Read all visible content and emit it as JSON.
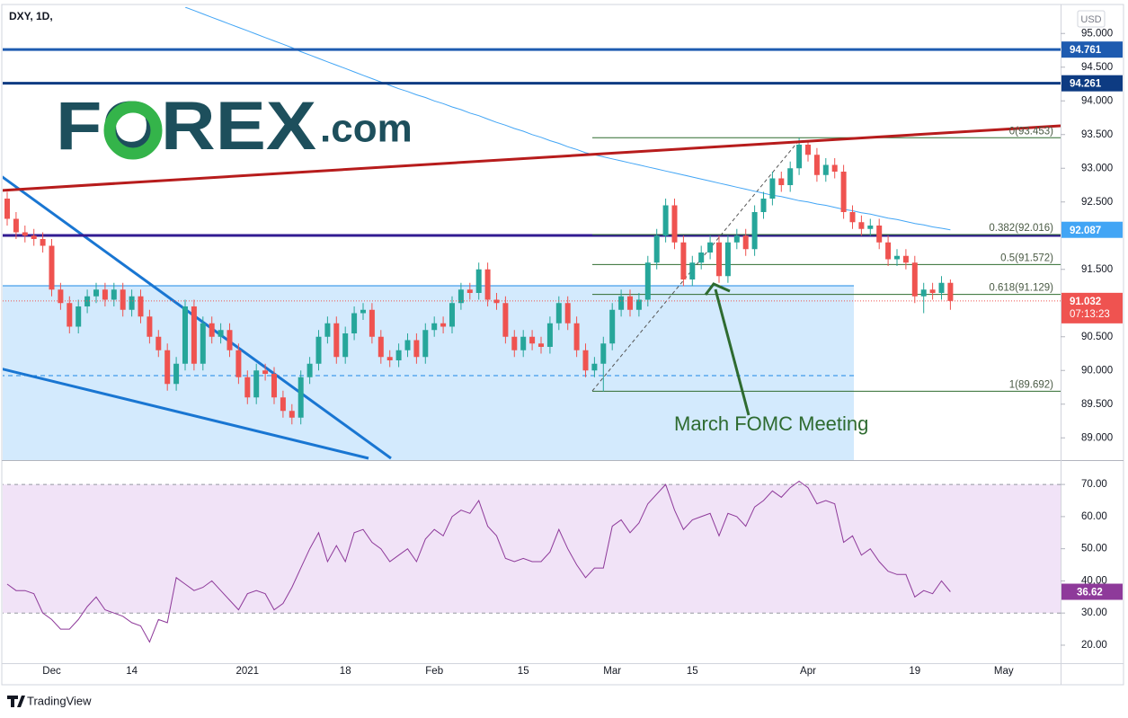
{
  "header": {
    "symbol": "DXY, 1D,",
    "currency": "USD"
  },
  "logo": {
    "brand": "FOREX",
    "suffix": ".com"
  },
  "footer": "TradingView",
  "chart_data": [
    {
      "type": "candlestick",
      "categories": [
        null,
        null,
        null,
        null,
        null,
        "Dec",
        null,
        null,
        null,
        null,
        null,
        null,
        null,
        null,
        "14",
        null,
        null,
        null,
        null,
        null,
        null,
        null,
        null,
        null,
        null,
        null,
        null,
        "2021",
        null,
        null,
        null,
        null,
        null,
        null,
        null,
        null,
        null,
        null,
        "18",
        null,
        null,
        null,
        null,
        null,
        null,
        null,
        null,
        null,
        "Feb",
        null,
        null,
        null,
        null,
        null,
        null,
        null,
        null,
        null,
        "15",
        null,
        null,
        null,
        null,
        null,
        null,
        null,
        null,
        null,
        "Mar",
        null,
        null,
        null,
        null,
        null,
        null,
        null,
        null,
        "15",
        null,
        null,
        null,
        null,
        null,
        null,
        null,
        null,
        null,
        null,
        null,
        null,
        "Apr",
        null,
        null,
        null,
        null,
        null,
        null,
        null,
        null,
        null,
        null,
        null,
        "19",
        null,
        null,
        null,
        null,
        null,
        null,
        null,
        null,
        null,
        "May",
        null,
        null,
        null,
        null,
        null,
        null
      ],
      "open": [
        92.55,
        92.25,
        92.05,
        92.0,
        91.95,
        91.85,
        91.2,
        91.0,
        90.65,
        90.95,
        91.1,
        91.2,
        91.05,
        91.2,
        90.9,
        91.1,
        90.8,
        90.5,
        90.3,
        89.8,
        90.1,
        90.95,
        90.1,
        90.7,
        90.5,
        90.6,
        90.3,
        89.9,
        89.6,
        90.0,
        89.95,
        89.6,
        89.4,
        89.3,
        89.9,
        90.1,
        90.5,
        90.7,
        90.2,
        90.55,
        90.85,
        90.9,
        90.5,
        90.2,
        90.15,
        90.3,
        90.45,
        90.2,
        90.6,
        90.7,
        90.65,
        91.0,
        91.2,
        91.15,
        91.5,
        91.05,
        91.0,
        90.5,
        90.3,
        90.5,
        90.4,
        90.35,
        90.7,
        91.0,
        90.7,
        90.3,
        90.0,
        90.1,
        90.4,
        90.9,
        91.1,
        90.9,
        91.05,
        91.6,
        92.0,
        92.45,
        91.9,
        91.35,
        91.6,
        91.75,
        91.9,
        91.4,
        91.9,
        92.0,
        91.8,
        92.35,
        92.55,
        92.85,
        92.75,
        93.0,
        93.35,
        93.2,
        92.9,
        93.05,
        92.95,
        92.35,
        92.2,
        92.1,
        92.15,
        91.9,
        91.65,
        91.7,
        91.6,
        91.1,
        91.2,
        91.15,
        91.3,
        null,
        null,
        null,
        null,
        null,
        null,
        null,
        null,
        null,
        null,
        null,
        null
      ],
      "high": [
        92.65,
        92.35,
        92.15,
        92.1,
        92.05,
        91.95,
        91.3,
        91.1,
        91.05,
        91.2,
        91.3,
        91.3,
        91.3,
        91.3,
        91.2,
        91.2,
        90.9,
        90.6,
        90.4,
        90.2,
        91.05,
        91.05,
        90.8,
        90.8,
        90.7,
        90.7,
        90.4,
        90.0,
        90.1,
        90.1,
        90.05,
        89.7,
        89.5,
        90.0,
        90.2,
        90.6,
        90.8,
        90.8,
        90.65,
        90.95,
        91.0,
        91.0,
        90.6,
        90.3,
        90.4,
        90.55,
        90.55,
        90.7,
        90.8,
        90.8,
        91.1,
        91.3,
        91.3,
        91.6,
        91.6,
        91.15,
        91.1,
        90.6,
        90.6,
        90.6,
        90.5,
        90.8,
        91.1,
        91.1,
        90.8,
        90.4,
        90.2,
        90.5,
        91.0,
        91.2,
        91.2,
        91.15,
        91.7,
        92.1,
        92.55,
        92.55,
        92.0,
        91.7,
        91.85,
        92.0,
        92.0,
        92.0,
        92.1,
        92.1,
        92.45,
        92.65,
        92.95,
        92.95,
        93.1,
        93.45,
        93.4,
        93.3,
        93.15,
        93.15,
        93.05,
        92.45,
        92.3,
        92.25,
        92.25,
        92.0,
        91.8,
        91.8,
        91.7,
        91.3,
        91.3,
        91.4,
        91.35,
        null,
        null,
        null,
        null,
        null,
        null,
        null,
        null,
        null,
        null,
        null,
        null
      ],
      "low": [
        92.15,
        91.95,
        91.9,
        91.85,
        91.75,
        91.1,
        90.9,
        90.55,
        90.55,
        90.85,
        91.0,
        90.95,
        90.95,
        90.8,
        90.8,
        90.7,
        90.4,
        90.2,
        89.7,
        89.7,
        90.0,
        90.0,
        90.0,
        90.4,
        90.4,
        90.2,
        89.8,
        89.5,
        89.5,
        89.85,
        89.5,
        89.3,
        89.2,
        89.2,
        89.8,
        90.0,
        90.4,
        90.1,
        90.1,
        90.45,
        90.75,
        90.4,
        90.1,
        90.05,
        90.05,
        90.2,
        90.1,
        90.1,
        90.5,
        90.55,
        90.55,
        90.9,
        91.05,
        91.05,
        90.95,
        90.9,
        90.4,
        90.2,
        90.2,
        90.3,
        90.25,
        90.25,
        90.6,
        90.6,
        90.2,
        89.9,
        89.9,
        89.69,
        90.3,
        90.8,
        90.8,
        90.8,
        90.95,
        91.5,
        91.9,
        91.8,
        91.25,
        91.25,
        91.5,
        91.65,
        91.3,
        91.3,
        91.8,
        91.7,
        91.7,
        92.25,
        92.45,
        92.65,
        92.65,
        92.9,
        93.1,
        92.8,
        92.8,
        92.85,
        92.25,
        92.1,
        92.0,
        92.0,
        91.8,
        91.55,
        91.55,
        91.5,
        91.0,
        90.85,
        91.05,
        91.05,
        90.9,
        null,
        null,
        null,
        null,
        null,
        null,
        null,
        null,
        null,
        null,
        null,
        null
      ],
      "close": [
        92.25,
        92.05,
        92.0,
        91.95,
        91.85,
        91.2,
        91.0,
        90.65,
        90.95,
        91.1,
        91.2,
        91.05,
        91.2,
        90.9,
        91.1,
        90.8,
        90.5,
        90.3,
        89.8,
        90.1,
        90.95,
        90.1,
        90.7,
        90.5,
        90.6,
        90.3,
        89.9,
        89.6,
        90.0,
        89.95,
        89.6,
        89.4,
        89.3,
        89.9,
        90.1,
        90.5,
        90.7,
        90.2,
        90.55,
        90.85,
        90.9,
        90.5,
        90.2,
        90.15,
        90.3,
        90.45,
        90.2,
        90.6,
        90.7,
        90.65,
        91.0,
        91.2,
        91.15,
        91.5,
        91.05,
        91.0,
        90.5,
        90.3,
        90.5,
        90.4,
        90.35,
        90.7,
        91.0,
        90.7,
        90.3,
        90.0,
        90.1,
        90.4,
        90.9,
        91.1,
        90.9,
        91.05,
        91.6,
        92.0,
        92.45,
        91.9,
        91.35,
        91.6,
        91.75,
        91.9,
        91.4,
        91.9,
        92.0,
        91.8,
        92.35,
        92.55,
        92.85,
        92.75,
        93.0,
        93.35,
        93.2,
        92.9,
        93.05,
        92.95,
        92.35,
        92.2,
        92.1,
        92.15,
        91.9,
        91.65,
        91.7,
        91.6,
        91.1,
        91.2,
        91.15,
        91.3,
        91.032,
        null,
        null,
        null,
        null,
        null,
        null,
        null,
        null,
        null,
        null,
        null,
        null
      ],
      "up_color": "#26a69a",
      "down_color": "#ef5350",
      "moving_average": {
        "color": "#42a5f5",
        "values": [
          null,
          null,
          null,
          null,
          null,
          null,
          null,
          null,
          null,
          null,
          null,
          null,
          null,
          null,
          null,
          null,
          null,
          null,
          null,
          null,
          95.39,
          95.34,
          95.29,
          95.24,
          95.19,
          95.14,
          95.09,
          95.04,
          94.99,
          94.94,
          94.89,
          94.84,
          94.79,
          94.73,
          94.68,
          94.63,
          94.58,
          94.53,
          94.48,
          94.43,
          94.38,
          94.33,
          94.28,
          94.23,
          94.18,
          94.14,
          94.09,
          94.05,
          94.0,
          93.96,
          93.91,
          93.87,
          93.82,
          93.78,
          93.73,
          93.68,
          93.64,
          93.59,
          93.55,
          93.5,
          93.46,
          93.41,
          93.37,
          93.32,
          93.28,
          93.23,
          93.2,
          93.17,
          93.14,
          93.11,
          93.08,
          93.05,
          93.02,
          92.99,
          92.96,
          92.93,
          92.9,
          92.87,
          92.84,
          92.81,
          92.78,
          92.75,
          92.72,
          92.69,
          92.66,
          92.63,
          92.6,
          92.58,
          92.55,
          92.52,
          92.5,
          92.47,
          92.45,
          92.42,
          92.39,
          92.37,
          92.34,
          92.32,
          92.29,
          92.26,
          92.24,
          92.21,
          92.18,
          92.16,
          92.13,
          92.11,
          92.087,
          null,
          null,
          null,
          null,
          null,
          null,
          null,
          null,
          null,
          null,
          null,
          null
        ]
      },
      "price_lines": [
        {
          "value": 94.761,
          "color": "#1e5bb0"
        },
        {
          "value": 94.261,
          "color": "#0d3b82"
        }
      ],
      "fibonacci": {
        "color": "#2f6b2f",
        "levels": [
          {
            "value": 93.453,
            "label": "0(93.453)"
          },
          {
            "value": 92.016,
            "label": "0.382(92.016)"
          },
          {
            "value": 91.572,
            "label": "0.5(91.572)"
          },
          {
            "value": 91.129,
            "label": "0.618(91.129)"
          },
          {
            "value": 89.692,
            "label": "1(89.692)"
          }
        ]
      },
      "countdown": "07:13:23",
      "annotation": "March FOMC Meeting",
      "ylim": [
        88.67,
        95.39
      ],
      "yticks": [
        {
          "value": 95,
          "label": "95.000"
        },
        {
          "value": 94.5,
          "label": "94.500"
        },
        {
          "value": 94,
          "label": "94.000"
        },
        {
          "value": 93.5,
          "label": "93.500"
        },
        {
          "value": 93,
          "label": "93.000"
        },
        {
          "value": 92.5,
          "label": "92.500"
        },
        {
          "value": 91.5,
          "label": "91.500"
        },
        {
          "value": 90.5,
          "label": "90.500"
        },
        {
          "value": 90,
          "label": "90.000"
        },
        {
          "value": 89.5,
          "label": "89.500"
        },
        {
          "value": 89,
          "label": "89.000"
        }
      ]
    },
    {
      "type": "line",
      "color": "#8e3a9a",
      "band_color": "#f1e3f7",
      "values": [
        39,
        37,
        37,
        36,
        30,
        28,
        25,
        25,
        28,
        32,
        35,
        31,
        30,
        29,
        27,
        26,
        21,
        28,
        27,
        41,
        39,
        37,
        38,
        40,
        37,
        34,
        31,
        36,
        37,
        36,
        31,
        33,
        38,
        44,
        50,
        55,
        46,
        51,
        46,
        55,
        56,
        52,
        50,
        46,
        48,
        50,
        46,
        53,
        56,
        54,
        60,
        62,
        61,
        65,
        57,
        54,
        47,
        46,
        47,
        46,
        46,
        49,
        56,
        50,
        45,
        41,
        44,
        44,
        57,
        59,
        55,
        58,
        64,
        67,
        70,
        62,
        56,
        59,
        60,
        61,
        54,
        61,
        60,
        57,
        63,
        65,
        68,
        66,
        69,
        71,
        69,
        64,
        65,
        64,
        52,
        54,
        48,
        50,
        46,
        43,
        42,
        42,
        35,
        37,
        36,
        40,
        36.62,
        null,
        null,
        null,
        null,
        null,
        null,
        null,
        null,
        null,
        null,
        null,
        null
      ],
      "levels": [
        30,
        70
      ],
      "ylim": [
        14.4,
        77.3
      ],
      "yticks": [
        {
          "value": 70,
          "label": "70.00"
        },
        {
          "value": 60,
          "label": "60.00"
        },
        {
          "value": 50,
          "label": "50.00"
        },
        {
          "value": 40,
          "label": "40.00"
        },
        {
          "value": 30,
          "label": "30.00"
        },
        {
          "value": 20,
          "label": "20.00"
        }
      ]
    }
  ]
}
